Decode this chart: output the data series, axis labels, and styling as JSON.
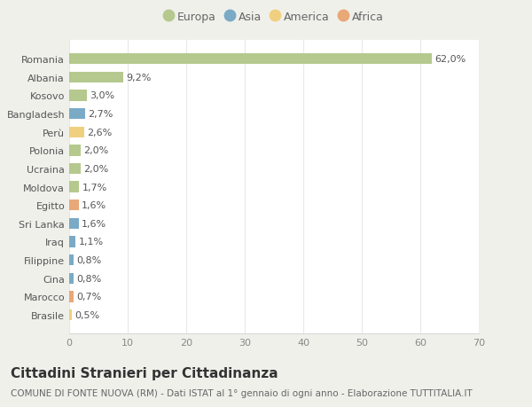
{
  "countries": [
    "Romania",
    "Albania",
    "Kosovo",
    "Bangladesh",
    "Perù",
    "Polonia",
    "Ucraina",
    "Moldova",
    "Egitto",
    "Sri Lanka",
    "Iraq",
    "Filippine",
    "Cina",
    "Marocco",
    "Brasile"
  ],
  "values": [
    62.0,
    9.2,
    3.0,
    2.7,
    2.6,
    2.0,
    2.0,
    1.7,
    1.6,
    1.6,
    1.1,
    0.8,
    0.8,
    0.7,
    0.5
  ],
  "labels": [
    "62,0%",
    "9,2%",
    "3,0%",
    "2,7%",
    "2,6%",
    "2,0%",
    "2,0%",
    "1,7%",
    "1,6%",
    "1,6%",
    "1,1%",
    "0,8%",
    "0,8%",
    "0,7%",
    "0,5%"
  ],
  "continents": [
    "Europa",
    "Europa",
    "Europa",
    "Asia",
    "America",
    "Europa",
    "Europa",
    "Europa",
    "Africa",
    "Asia",
    "Asia",
    "Asia",
    "Asia",
    "Africa",
    "America"
  ],
  "continent_colors": {
    "Europa": "#b5c98e",
    "Asia": "#7aaac6",
    "America": "#f0d080",
    "Africa": "#e8a878"
  },
  "legend_order": [
    "Europa",
    "Asia",
    "America",
    "Africa"
  ],
  "title": "Cittadini Stranieri per Cittadinanza",
  "subtitle": "COMUNE DI FONTE NUOVA (RM) - Dati ISTAT al 1° gennaio di ogni anno - Elaborazione TUTTITALIA.IT",
  "xlim": [
    0,
    70
  ],
  "xticks": [
    0,
    10,
    20,
    30,
    40,
    50,
    60,
    70
  ],
  "figure_bg": "#f0f0eb",
  "axes_bg": "#ffffff",
  "grid_color": "#e8e8e8",
  "bar_height": 0.6,
  "title_fontsize": 11,
  "subtitle_fontsize": 7.5,
  "label_fontsize": 8,
  "tick_fontsize": 8,
  "legend_fontsize": 9
}
